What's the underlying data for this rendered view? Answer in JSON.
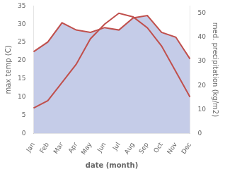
{
  "chart_data": {
    "type": "line",
    "categories": [
      "Jan",
      "Feb",
      "Mar",
      "Apr",
      "May",
      "Jun",
      "Jul",
      "Aug",
      "Sep",
      "Oct",
      "Nov",
      "Dec"
    ],
    "series": [
      {
        "type": "area",
        "color": "#c5cce8",
        "axis": "y2",
        "values": [
          34,
          38,
          46,
          43,
          42,
          44,
          43,
          48,
          49,
          42,
          40,
          31
        ]
      },
      {
        "type": "line",
        "color": "#c0504d",
        "values": [
          7,
          9,
          14,
          19,
          26,
          30,
          33,
          32,
          29,
          24,
          17,
          10
        ]
      },
      {
        "type": "line",
        "color": "#c0504d",
        "axis": "y2",
        "values": [
          34,
          38,
          46,
          43,
          42,
          44,
          43,
          48,
          49,
          42,
          40,
          31
        ]
      }
    ],
    "xlabel": "date (month)",
    "ylabel": "max temp (C)",
    "y2label": "med. precipitation (kg/m2)",
    "ylim": [
      0,
      35
    ],
    "yticks": [
      0,
      5,
      10,
      15,
      20,
      25,
      30,
      35
    ],
    "y2lim": [
      0,
      53
    ],
    "y2ticks": [
      0,
      10,
      20,
      30,
      40,
      50
    ],
    "grid": false
  }
}
